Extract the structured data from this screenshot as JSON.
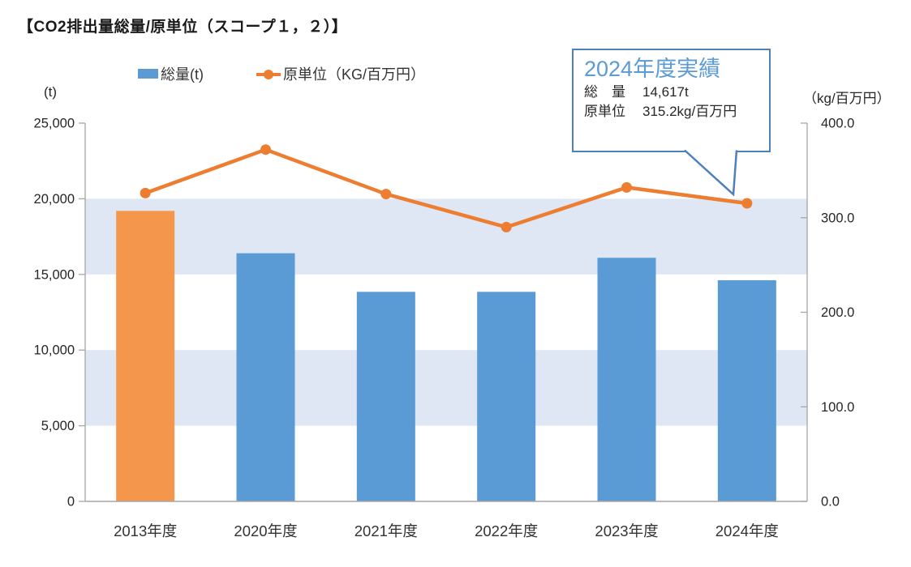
{
  "title": "【CO2排出量総量/原単位（スコープ１，２）】",
  "legend": {
    "bar": {
      "label": "総量(t)",
      "color": "#5B9BD5"
    },
    "line": {
      "label": "原単位（KG/百万円）",
      "color": "#ED7D31"
    }
  },
  "chart_data": {
    "type": "combo-bar-line",
    "title": "【CO2排出量総量/原単位（スコープ１，２）】",
    "categories": [
      "2013年度",
      "2020年度",
      "2021年度",
      "2022年度",
      "2023年度",
      "2024年度"
    ],
    "series": [
      {
        "name": "総量(t)",
        "type": "bar",
        "axis": "left",
        "values": [
          19200,
          16400,
          13850,
          13850,
          16100,
          14617
        ],
        "color": "#5B9BD5",
        "highlight_index": 0,
        "highlight_color": "#F5964D"
      },
      {
        "name": "原単位（KG/百万円）",
        "type": "line",
        "axis": "right",
        "values": [
          326,
          372,
          325,
          290,
          332,
          315.2
        ],
        "color": "#ED7D31"
      }
    ],
    "left_axis": {
      "label": "(t)",
      "range": [
        0,
        25000
      ],
      "tick_interval": 5000,
      "tick_labels": [
        "0",
        "5,000",
        "10,000",
        "15,000",
        "20,000",
        "25,000"
      ]
    },
    "right_axis": {
      "label": "（kg/百万円）",
      "range": [
        0,
        400
      ],
      "tick_interval": 100,
      "tick_labels": [
        "0.0",
        "100.0",
        "200.0",
        "300.0",
        "400.0"
      ]
    },
    "plot_bands": [
      {
        "axis": "left",
        "from": 5000,
        "to": 10000
      },
      {
        "axis": "left",
        "from": 15000,
        "to": 20000
      }
    ],
    "legend_position": "top",
    "grid": false
  },
  "callout": {
    "title": "2024年度実績",
    "rows": [
      {
        "label": "総　量",
        "value": "14,617t"
      },
      {
        "label": "原単位",
        "value": "315.2kg/百万円"
      }
    ],
    "border_color": "#4E80BC",
    "title_color": "#5B9BD5"
  },
  "colors": {
    "bar_blue": "#5B9BD5",
    "bar_highlight_orange": "#F5964D",
    "line_orange": "#ED7D31",
    "band_blue": "#DEE7F3",
    "axis_gray": "#A6A6A6",
    "tick_text": "#262626",
    "title_text": "#1A1A1A"
  }
}
